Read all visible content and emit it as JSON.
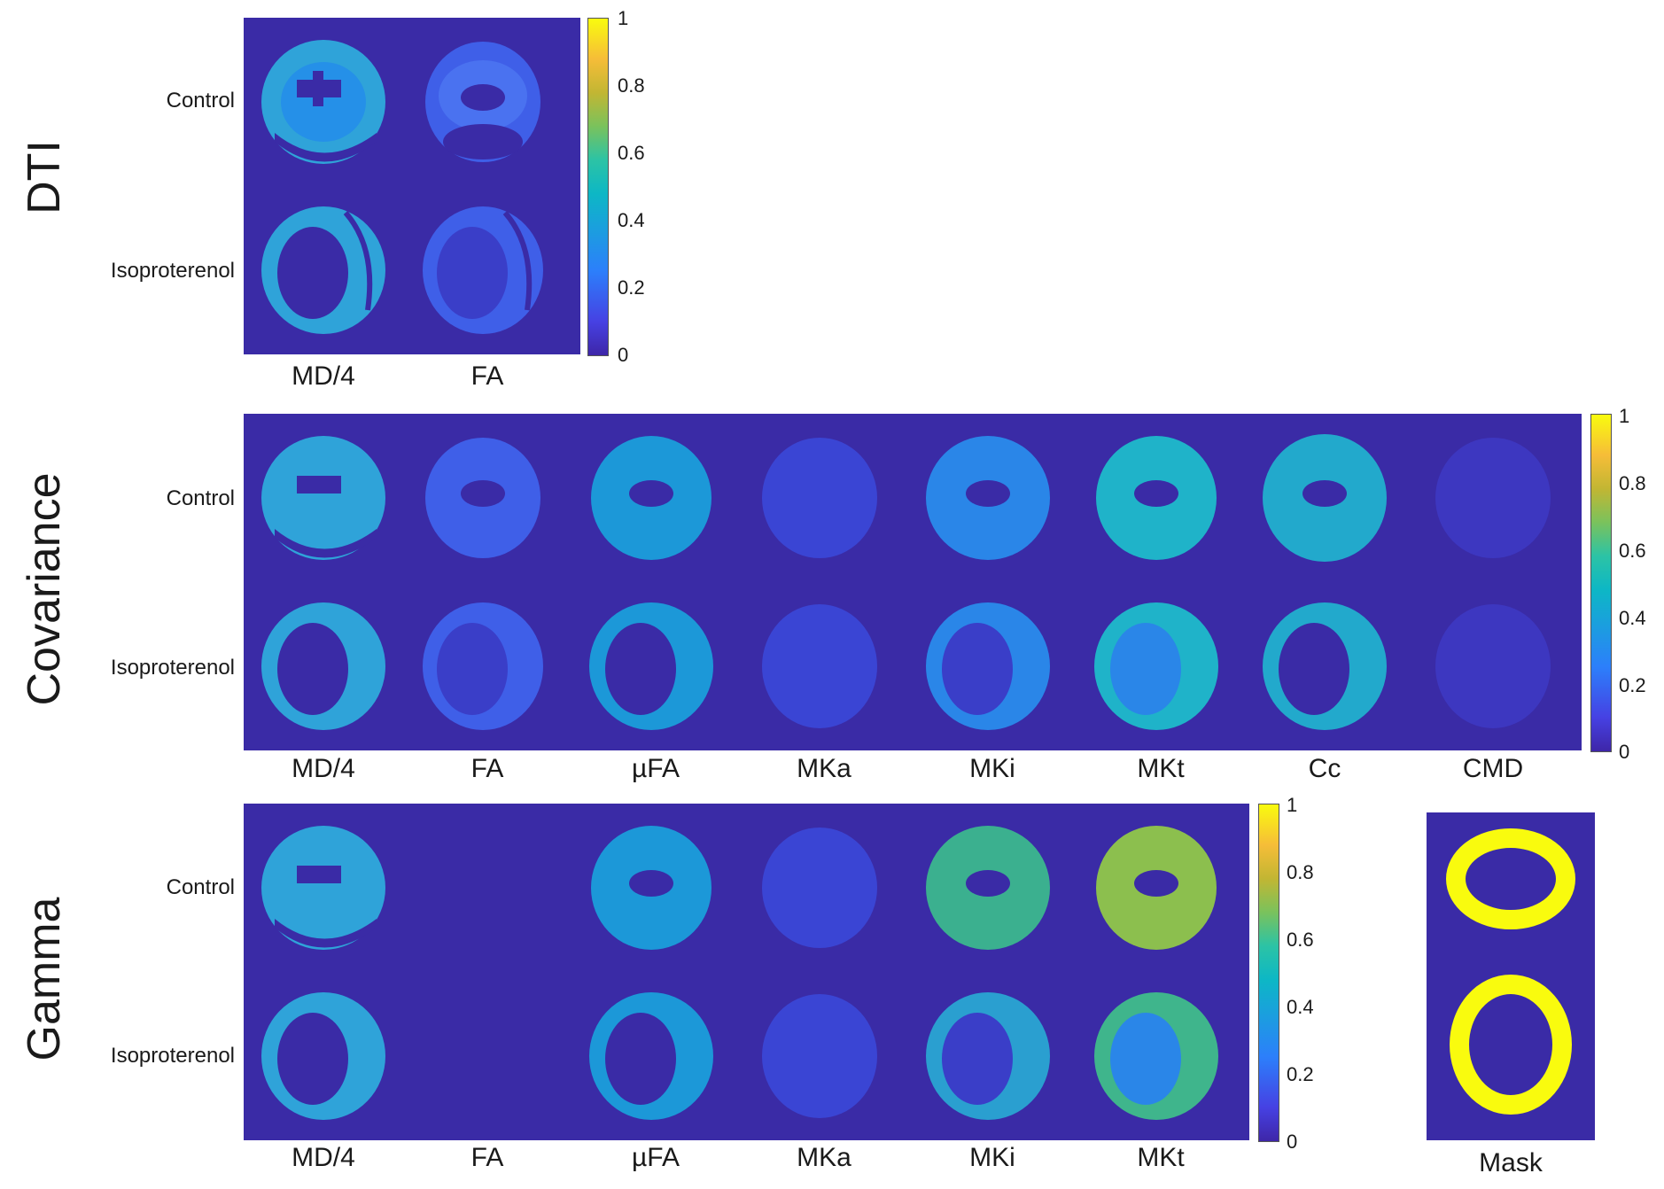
{
  "sections": [
    {
      "title": "DTI",
      "rows": [
        "Control",
        "Isoproterenol"
      ],
      "columns": [
        "MD/4",
        "FA"
      ],
      "colorbar_ticks": [
        "1",
        "0.8",
        "0.6",
        "0.4",
        "0.2",
        "0"
      ]
    },
    {
      "title": "Covariance",
      "rows": [
        "Control",
        "Isoproterenol"
      ],
      "columns": [
        "MD/4",
        "FA",
        "µFA",
        "MKa",
        "MKi",
        "MKt",
        "Cc",
        "CMD"
      ],
      "colorbar_ticks": [
        "1",
        "0.8",
        "0.6",
        "0.4",
        "0.2",
        "0"
      ]
    },
    {
      "title": "Gamma",
      "rows": [
        "Control",
        "Isoproterenol"
      ],
      "columns": [
        "MD/4",
        "FA",
        "µFA",
        "MKa",
        "MKi",
        "MKt"
      ],
      "colorbar_ticks": [
        "1",
        "0.8",
        "0.6",
        "0.4",
        "0.2",
        "0"
      ]
    }
  ],
  "mask": {
    "label": "Mask"
  },
  "colors": {
    "background": "#3a2ba6",
    "mask_ring": "#f9fb0e"
  }
}
